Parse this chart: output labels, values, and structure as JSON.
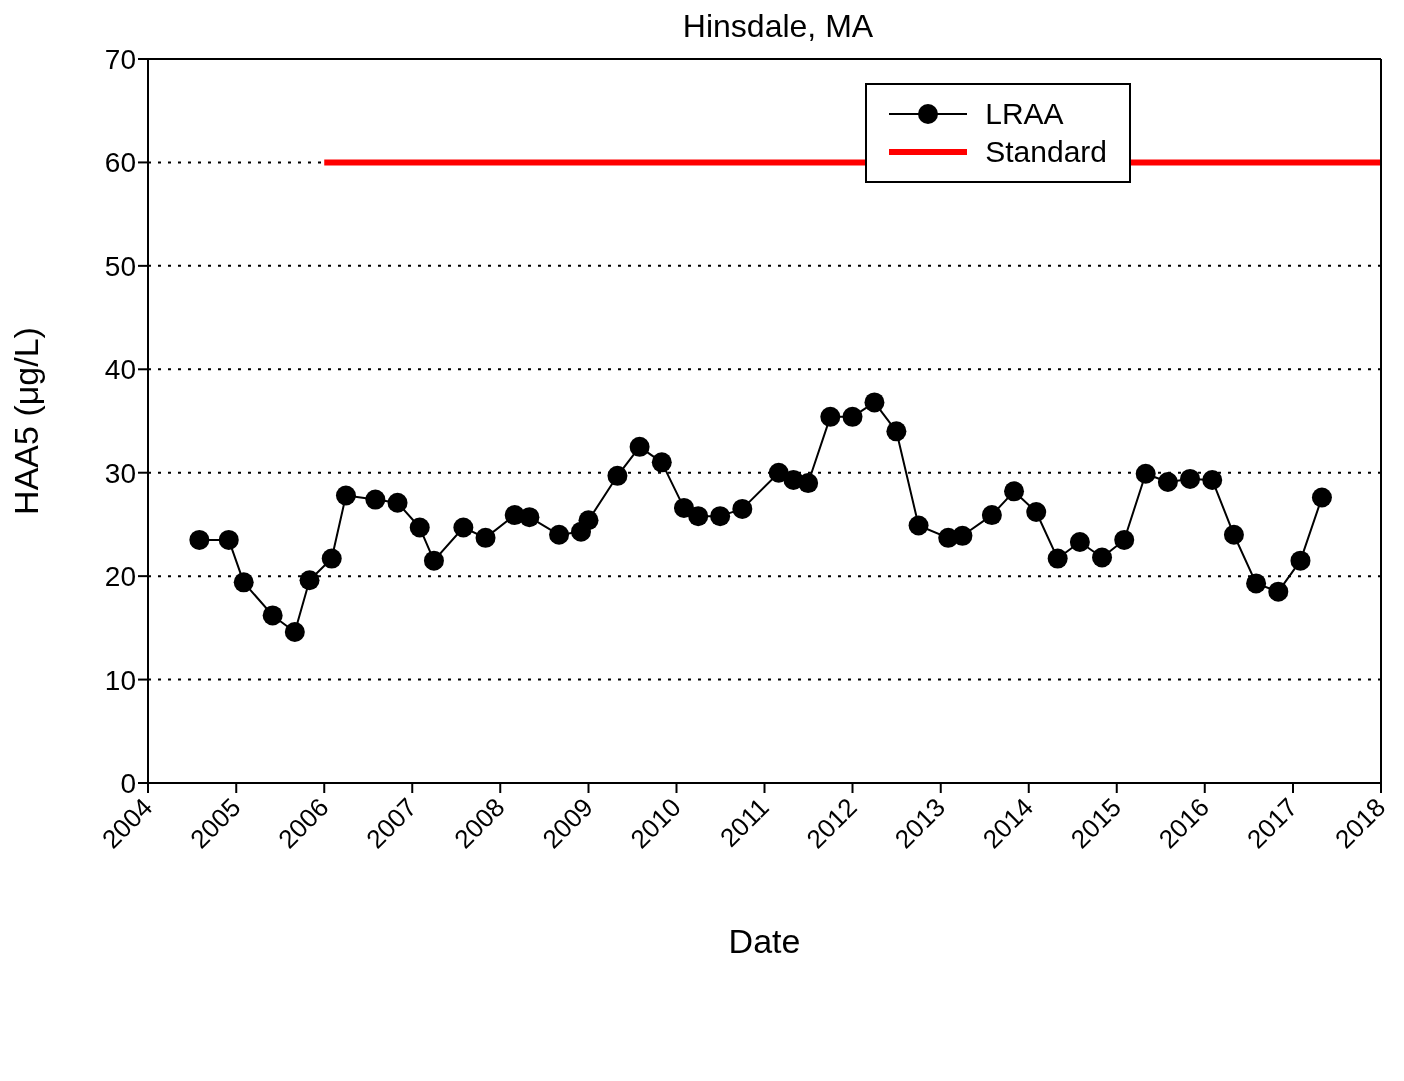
{
  "chart_data": {
    "type": "line",
    "title": "Hinsdale, MA",
    "xlabel": "Date",
    "ylabel": "HAA5 (μg/L)",
    "x": [
      "2004-08",
      "2004-12",
      "2005-02",
      "2005-06",
      "2005-09",
      "2005-11",
      "2006-02",
      "2006-04",
      "2006-08",
      "2006-11",
      "2007-02",
      "2007-04",
      "2007-08",
      "2007-11",
      "2008-03",
      "2008-05",
      "2008-09",
      "2008-12",
      "2009-01",
      "2009-05",
      "2009-08",
      "2009-11",
      "2010-02",
      "2010-04",
      "2010-07",
      "2010-10",
      "2011-03",
      "2011-05",
      "2011-07",
      "2011-10",
      "2012-01",
      "2012-04",
      "2012-07",
      "2012-10",
      "2013-02",
      "2013-04",
      "2013-08",
      "2013-11",
      "2014-02",
      "2014-05",
      "2014-08",
      "2014-11",
      "2015-02",
      "2015-05",
      "2015-08",
      "2015-11",
      "2016-02",
      "2016-05",
      "2016-08",
      "2016-11",
      "2017-02",
      "2017-05"
    ],
    "series": [
      {
        "name": "LRAA",
        "color": "#000000",
        "marker": "circle",
        "values": [
          23.5,
          23.5,
          19.4,
          16.2,
          14.6,
          19.6,
          21.7,
          27.8,
          27.4,
          27.1,
          24.7,
          21.5,
          24.7,
          23.7,
          25.9,
          25.7,
          24.0,
          24.3,
          25.4,
          29.7,
          32.5,
          31.0,
          26.6,
          25.8,
          25.8,
          26.5,
          30.0,
          29.3,
          29.0,
          35.4,
          35.4,
          36.8,
          34.0,
          24.9,
          23.7,
          23.9,
          25.9,
          28.2,
          26.2,
          21.7,
          23.3,
          21.8,
          23.5,
          29.9,
          29.1,
          29.4,
          29.3,
          24.0,
          19.3,
          18.5,
          21.5,
          27.6
        ]
      },
      {
        "name": "Standard",
        "color": "#ff0000",
        "type": "line",
        "marker": "none",
        "x": [
          "2006",
          "2018"
        ],
        "values": [
          60,
          60
        ]
      }
    ],
    "xlim": [
      "2004",
      "2018"
    ],
    "xticks": [
      "2004",
      "2005",
      "2006",
      "2007",
      "2008",
      "2009",
      "2010",
      "2011",
      "2012",
      "2013",
      "2014",
      "2015",
      "2016",
      "2017",
      "2018"
    ],
    "ylim": [
      0,
      70
    ],
    "yticks": [
      0,
      10,
      20,
      30,
      40,
      50,
      60,
      70
    ],
    "grid": "y",
    "legend": "top right",
    "line_style": "solid"
  }
}
